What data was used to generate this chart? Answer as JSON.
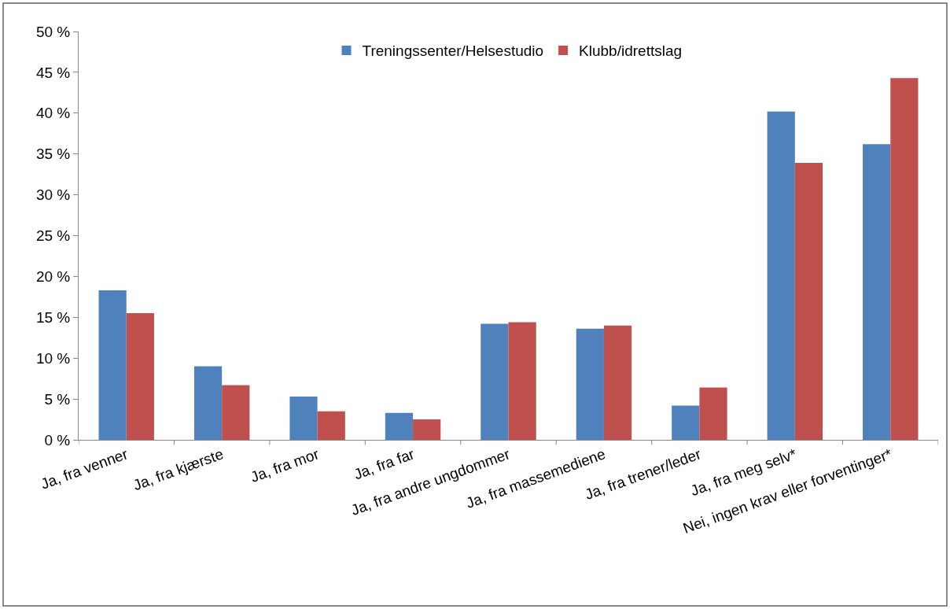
{
  "chart_data": {
    "type": "bar",
    "categories": [
      "Ja, fra venner",
      "Ja, fra kjærste",
      "Ja, fra mor",
      "Ja, fra far",
      "Ja, fra andre ungdommer",
      "Ja, fra massemediene",
      "Ja, fra trener/leder",
      "Ja, fra meg selv*",
      "Nei, ingen krav eller forventinger*"
    ],
    "series": [
      {
        "name": "Treningssenter/Helsestudio",
        "color": "#4f81bd",
        "values": [
          18.3,
          9.0,
          5.3,
          3.3,
          14.2,
          13.6,
          4.2,
          40.2,
          36.2
        ]
      },
      {
        "name": "Klubb/idrettslag",
        "color": "#c0504d",
        "values": [
          15.5,
          6.7,
          3.5,
          2.5,
          14.4,
          14.0,
          6.4,
          33.9,
          44.3
        ]
      }
    ],
    "ylim": [
      0,
      50
    ],
    "yticks": [
      {
        "value": 0,
        "label": "0 %"
      },
      {
        "value": 5,
        "label": "5 %"
      },
      {
        "value": 10,
        "label": "10 %"
      },
      {
        "value": 15,
        "label": "15 %"
      },
      {
        "value": 20,
        "label": "20 %"
      },
      {
        "value": 25,
        "label": "25 %"
      },
      {
        "value": 30,
        "label": "30 %"
      },
      {
        "value": 35,
        "label": "35 %"
      },
      {
        "value": 40,
        "label": "40 %"
      },
      {
        "value": 45,
        "label": "45 %"
      },
      {
        "value": 50,
        "label": "50 %"
      }
    ],
    "grid": false,
    "legend": "top"
  }
}
